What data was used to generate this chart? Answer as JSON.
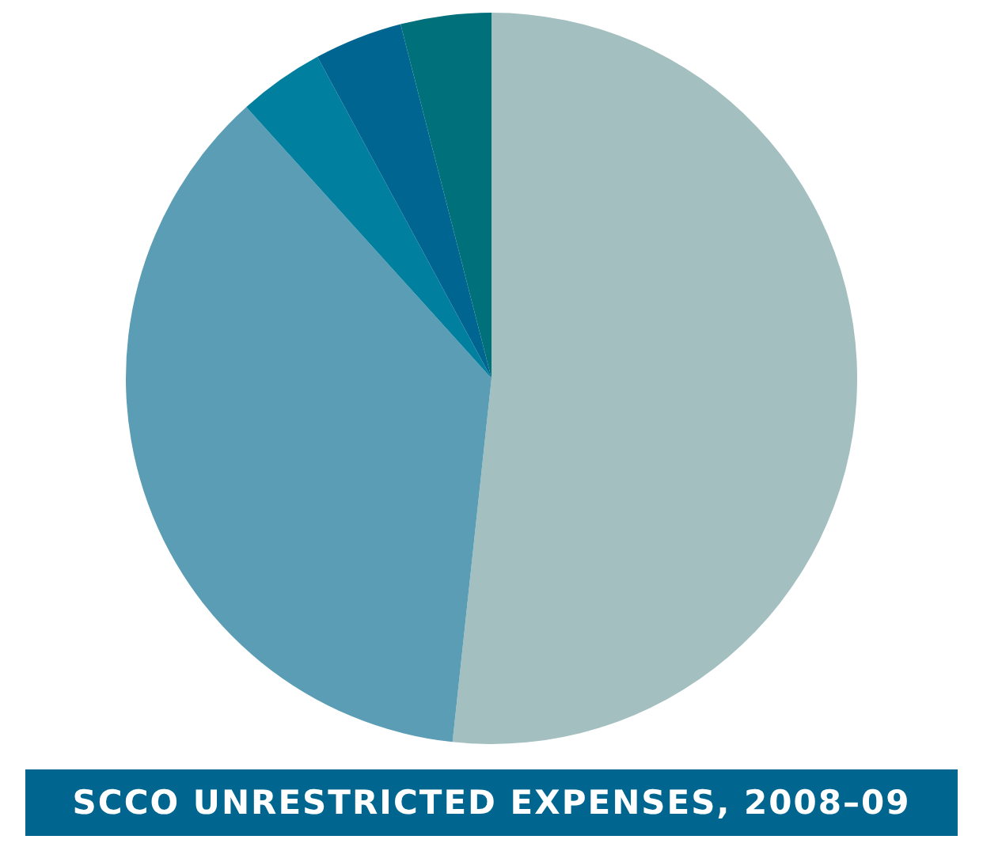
{
  "chart_data": {
    "type": "pie",
    "title": "SCCO UNRESTRICTED EXPENSES, 2008–09",
    "categories": [
      null,
      null,
      null,
      null,
      null
    ],
    "values": [
      51.7,
      36.6,
      3.8,
      3.9,
      4.0
    ],
    "colors": [
      "#a3bfc0",
      "#5b9db5",
      "#007f9f",
      "#006691",
      "#00707a"
    ],
    "legend": false
  }
}
